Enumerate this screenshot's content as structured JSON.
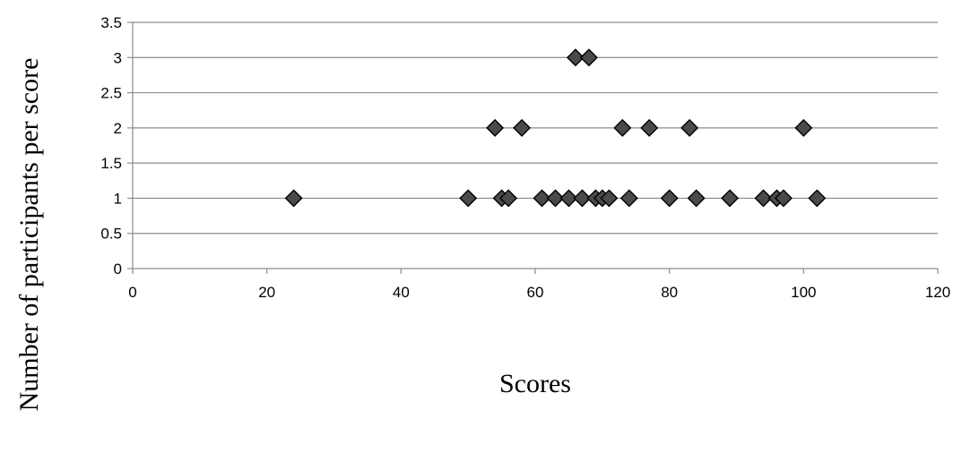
{
  "chart_data": {
    "type": "scatter",
    "title": "",
    "xlabel": "Scores",
    "ylabel": "Number of participants per score",
    "xlim": [
      0,
      120
    ],
    "ylim": [
      0,
      3.5
    ],
    "x_ticks": [
      0,
      20,
      40,
      60,
      80,
      100,
      120
    ],
    "y_ticks": [
      0,
      0.5,
      1,
      1.5,
      2,
      2.5,
      3,
      3.5
    ],
    "x_tick_labels": [
      "0",
      "20",
      "40",
      "60",
      "80",
      "100",
      "120"
    ],
    "y_tick_labels": [
      "0",
      "0.5",
      "1",
      "1.5",
      "2",
      "2.5",
      "3",
      "3.5"
    ],
    "grid": "horizontal",
    "legend": "none",
    "marker": "diamond",
    "colors": {
      "marker_fill": "#4a4a4a",
      "marker_edge": "#000000",
      "grid": "#8c8c8c",
      "axis": "#8c8c8c"
    },
    "points": [
      {
        "x": 24,
        "y": 1
      },
      {
        "x": 50,
        "y": 1
      },
      {
        "x": 55,
        "y": 1
      },
      {
        "x": 56,
        "y": 1
      },
      {
        "x": 61,
        "y": 1
      },
      {
        "x": 63,
        "y": 1
      },
      {
        "x": 65,
        "y": 1
      },
      {
        "x": 67,
        "y": 1
      },
      {
        "x": 69,
        "y": 1
      },
      {
        "x": 70,
        "y": 1
      },
      {
        "x": 71,
        "y": 1
      },
      {
        "x": 74,
        "y": 1
      },
      {
        "x": 80,
        "y": 1
      },
      {
        "x": 84,
        "y": 1
      },
      {
        "x": 89,
        "y": 1
      },
      {
        "x": 94,
        "y": 1
      },
      {
        "x": 96,
        "y": 1
      },
      {
        "x": 97,
        "y": 1
      },
      {
        "x": 102,
        "y": 1
      },
      {
        "x": 54,
        "y": 2
      },
      {
        "x": 58,
        "y": 2
      },
      {
        "x": 73,
        "y": 2
      },
      {
        "x": 77,
        "y": 2
      },
      {
        "x": 83,
        "y": 2
      },
      {
        "x": 100,
        "y": 2
      },
      {
        "x": 66,
        "y": 3
      },
      {
        "x": 68,
        "y": 3
      }
    ]
  }
}
